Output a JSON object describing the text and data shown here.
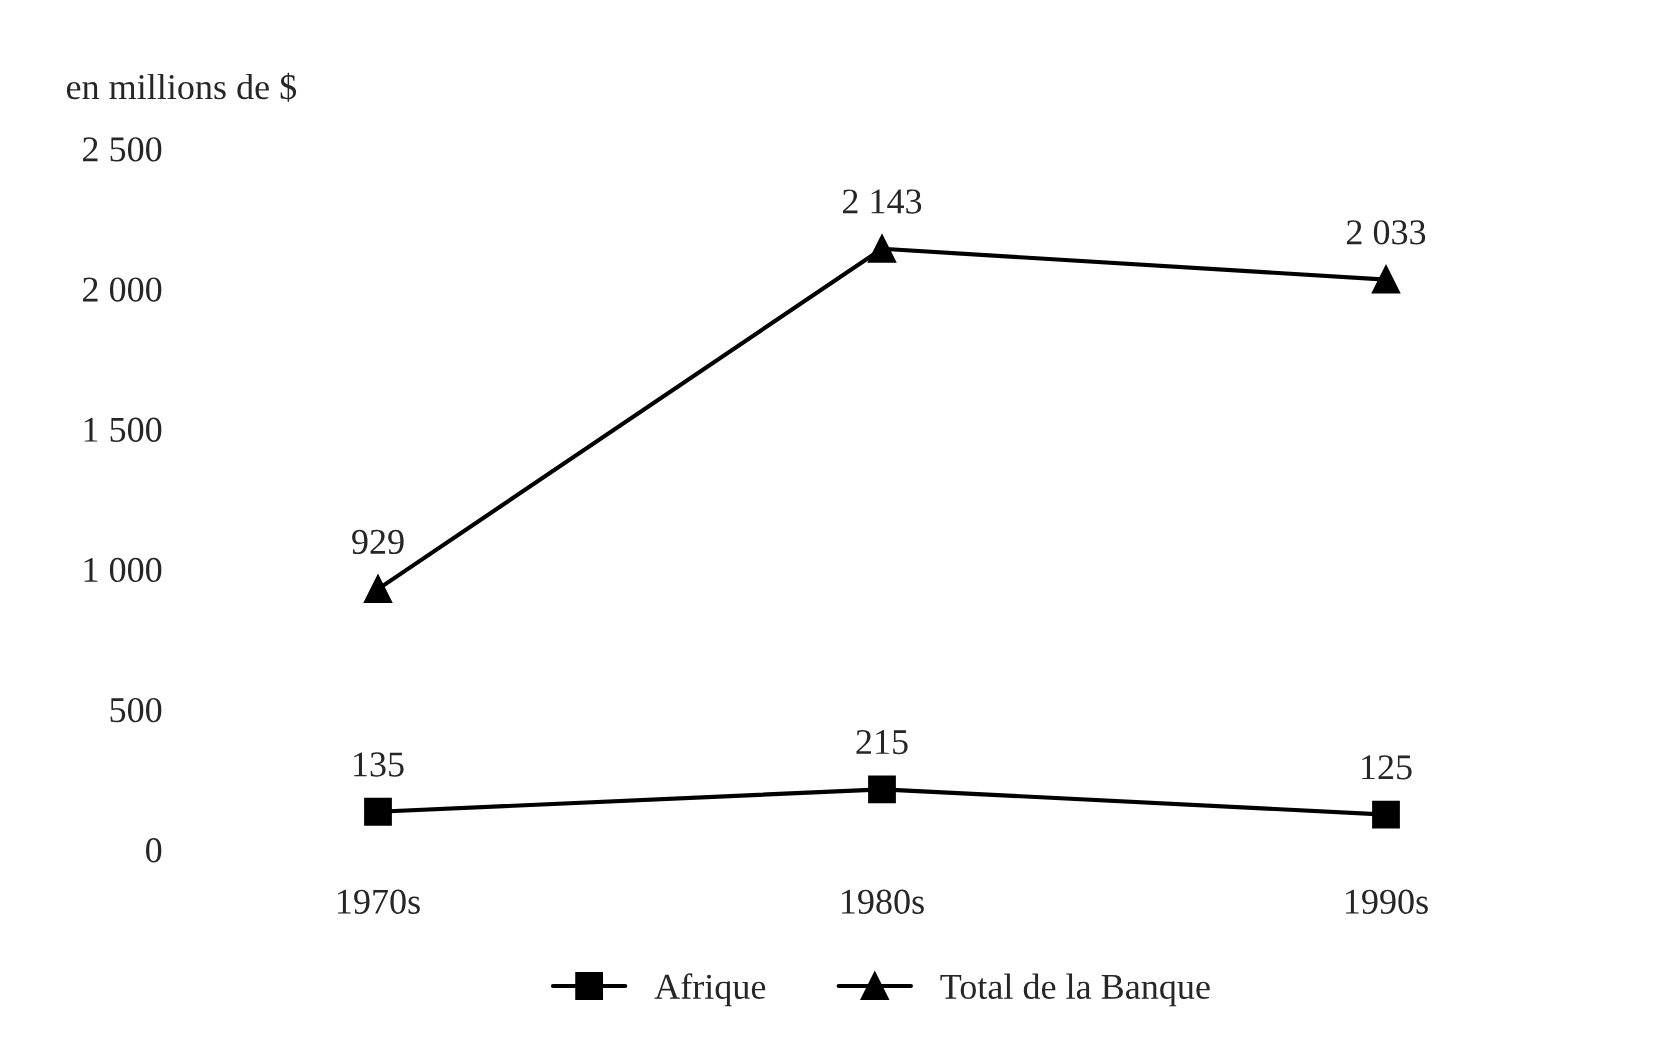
{
  "chart_data": {
    "type": "line",
    "ylabel": "en millions de $",
    "categories": [
      "1970s",
      "1980s",
      "1990s"
    ],
    "series": [
      {
        "name": "Afrique",
        "color": "#000000",
        "marker": "square",
        "values": [
          135,
          215,
          125
        ],
        "value_labels": [
          "135",
          "215",
          "125"
        ]
      },
      {
        "name": "Total de la Banque",
        "color": "#000000",
        "marker": "triangle",
        "values": [
          929,
          2143,
          2033
        ],
        "value_labels": [
          "929",
          "2 143",
          "2 033"
        ]
      }
    ],
    "ylim": [
      0,
      2500
    ],
    "yticks": [
      0,
      {
        "value": 500,
        "label": "500"
      },
      {
        "value": 1000,
        "label": "1 000"
      },
      {
        "value": 1500,
        "label": "1 500"
      },
      {
        "value": 2000,
        "label": "2 000"
      },
      {
        "value": 2500,
        "label": "2 500"
      }
    ],
    "grid": false,
    "legend": "bottom"
  }
}
